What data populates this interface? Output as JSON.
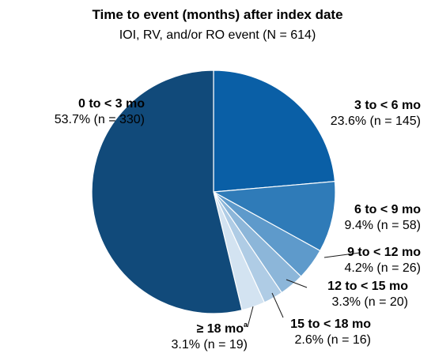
{
  "chart_data": {
    "type": "pie",
    "title": "Time to event (months) after index date",
    "subtitle": "IOI, RV, and/or RO event (N = 614)",
    "slices": [
      {
        "label": "3 to < 6 mo",
        "sup": "",
        "percent": 23.6,
        "pct_text": "23.6%",
        "n_text": "(n = 145)",
        "color": "#0a5fa6"
      },
      {
        "label": "6 to < 9 mo",
        "sup": "",
        "percent": 9.4,
        "pct_text": "9.4%",
        "n_text": "(n = 58)",
        "color": "#2f7bb8"
      },
      {
        "label": "9 to < 12 mo",
        "sup": "",
        "percent": 4.2,
        "pct_text": "4.2%",
        "n_text": "(n = 26)",
        "color": "#5e9acb"
      },
      {
        "label": "12 to < 15 mo",
        "sup": "",
        "percent": 3.3,
        "pct_text": "3.3%",
        "n_text": "(n = 20)",
        "color": "#8cb6d9"
      },
      {
        "label": "15 to < 18 mo",
        "sup": "",
        "percent": 2.6,
        "pct_text": "2.6%",
        "n_text": "(n = 16)",
        "color": "#afcce5"
      },
      {
        "label": "≥ 18 mo",
        "sup": "a",
        "percent": 3.1,
        "pct_text": "3.1%",
        "n_text": "(n = 19)",
        "color": "#d3e3f1"
      },
      {
        "label": "0 to < 3 mo",
        "sup": "",
        "percent": 53.7,
        "pct_text": "53.7%",
        "n_text": "(n = 330)",
        "color": "#114a7a"
      }
    ]
  }
}
